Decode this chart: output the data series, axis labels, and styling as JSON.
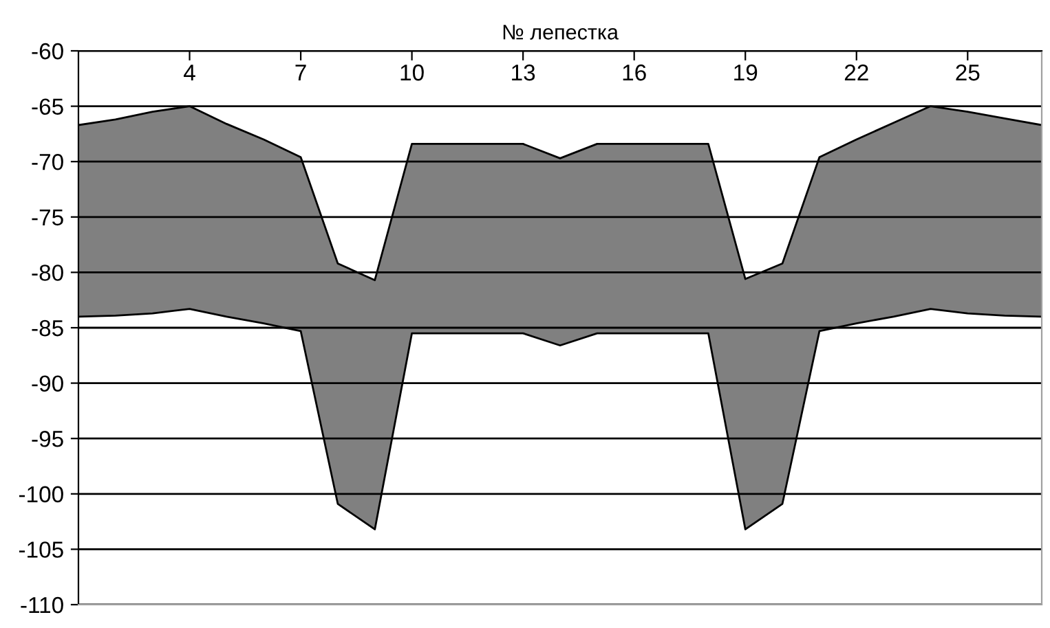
{
  "chart_data": {
    "type": "area",
    "xlabel": "№ лепестка",
    "x": [
      1,
      2,
      3,
      4,
      5,
      6,
      7,
      8,
      9,
      10,
      11,
      12,
      13,
      14,
      15,
      16,
      17,
      18,
      19,
      20,
      21,
      22,
      23,
      24,
      25,
      26,
      27
    ],
    "series": [
      {
        "color": "#808080",
        "values": [
          -84.0,
          -83.9,
          -83.7,
          -83.3,
          -84.0,
          -84.6,
          -85.3,
          -100.9,
          -103.2,
          -85.5,
          -85.5,
          -85.5,
          -85.5,
          -86.6,
          -85.5,
          -85.5,
          -85.5,
          -85.5,
          -103.2,
          -100.9,
          -85.3,
          -84.6,
          -84.0,
          -83.3,
          -83.7,
          -83.9,
          -84.0
        ]
      },
      {
        "color": "#ffffff",
        "values": [
          -66.7,
          -66.2,
          -65.5,
          -65.0,
          -66.6,
          -68.0,
          -69.6,
          -79.2,
          -80.7,
          -68.4,
          -68.4,
          -68.4,
          -68.4,
          -69.7,
          -68.4,
          -68.4,
          -68.4,
          -68.4,
          -80.6,
          -79.2,
          -69.6,
          -68.0,
          -66.5,
          -65.0,
          -65.5,
          -66.1,
          -66.7
        ]
      }
    ],
    "xlim": [
      1,
      27
    ],
    "xticks": [
      4,
      7,
      10,
      13,
      16,
      19,
      22,
      25
    ],
    "ylim": [
      -110,
      -60
    ],
    "yticks": [
      -110,
      -105,
      -100,
      -95,
      -90,
      -85,
      -80,
      -75,
      -70,
      -65,
      -60
    ],
    "grid": "y"
  }
}
